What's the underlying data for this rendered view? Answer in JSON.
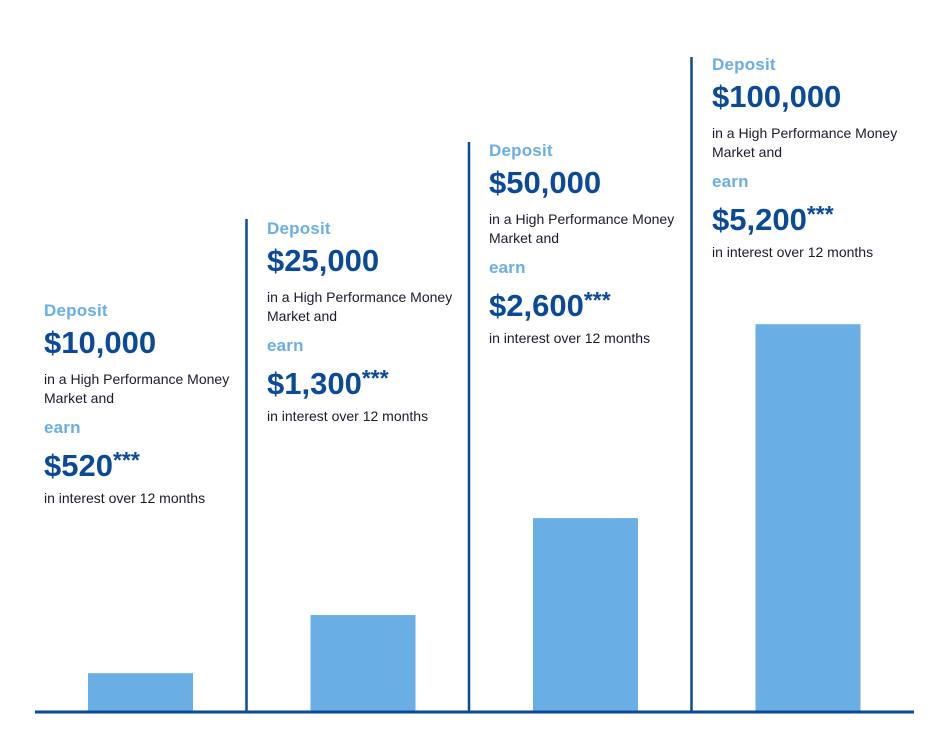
{
  "colors": {
    "bar": "#6aaee6",
    "axis": "#0b4a99",
    "amount": "#0b4a99",
    "label": "#6aaee6",
    "text": "#1a1a2e"
  },
  "chart_data": {
    "type": "bar",
    "categories": [
      "$10,000",
      "$25,000",
      "$50,000",
      "$100,000"
    ],
    "values": [
      520,
      1300,
      2600,
      5200
    ],
    "ylim": [
      0,
      5900
    ],
    "grid": false,
    "title": "",
    "xlabel": "",
    "ylabel": ""
  },
  "columns": [
    {
      "deposit_label": "Deposit",
      "deposit_amount": "$10,000",
      "description": "in a High Performance Money Market and",
      "earn_label": "earn",
      "earn_amount": "$520",
      "earn_suffix": "***",
      "interest_text": "in interest over 12 months"
    },
    {
      "deposit_label": "Deposit",
      "deposit_amount": "$25,000",
      "description": "in a High Performance Money Market and",
      "earn_label": "earn",
      "earn_amount": "$1,300",
      "earn_suffix": "***",
      "interest_text": "in interest over 12 months"
    },
    {
      "deposit_label": "Deposit",
      "deposit_amount": "$50,000",
      "description": "in a High Performance Money Market and",
      "earn_label": "earn",
      "earn_amount": "$2,600",
      "earn_suffix": "***",
      "interest_text": "in interest over 12 months"
    },
    {
      "deposit_label": "Deposit",
      "deposit_amount": "$100,000",
      "description": "in a High Performance Money Market and",
      "earn_label": "earn",
      "earn_amount": "$5,200",
      "earn_suffix": "***",
      "interest_text": "in interest over 12 months"
    }
  ]
}
